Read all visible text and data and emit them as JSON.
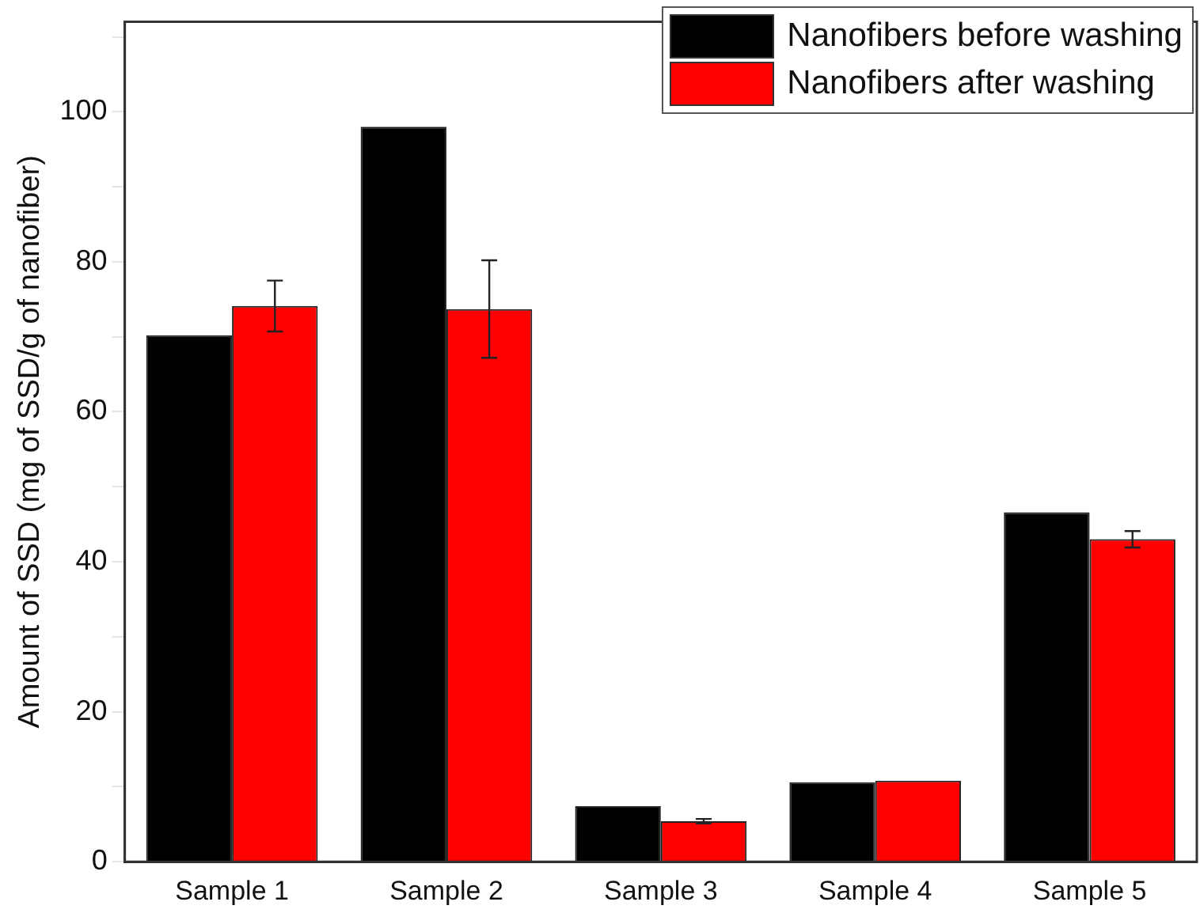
{
  "chart_data": {
    "type": "bar",
    "ylabel": "Amount of SSD (mg of SSD/g of nanofiber)",
    "categories": [
      "Sample 1",
      "Sample 2",
      "Sample 3",
      "Sample 4",
      "Sample 5"
    ],
    "series": [
      {
        "name": "Nanofibers before washing",
        "color": "#000000",
        "values": [
          70.2,
          98.0,
          7.4,
          10.6,
          46.6
        ]
      },
      {
        "name": "Nanofibers after washing",
        "color": "#ff0000",
        "values": [
          74.1,
          73.7,
          5.4,
          10.8,
          43.0
        ],
        "errors": [
          3.4,
          6.5,
          0.3,
          null,
          1.1
        ]
      }
    ],
    "ylim": [
      0,
      112
    ],
    "yticks": [
      0,
      {
        "value": 10,
        "label": null
      },
      20,
      {
        "value": 30,
        "label": null
      },
      40,
      {
        "value": 50,
        "label": null
      },
      60,
      {
        "value": 70,
        "label": null
      },
      80,
      {
        "value": 90,
        "label": null
      },
      100,
      {
        "value": 110,
        "label": null
      }
    ],
    "grid": false,
    "legend": "top right"
  }
}
